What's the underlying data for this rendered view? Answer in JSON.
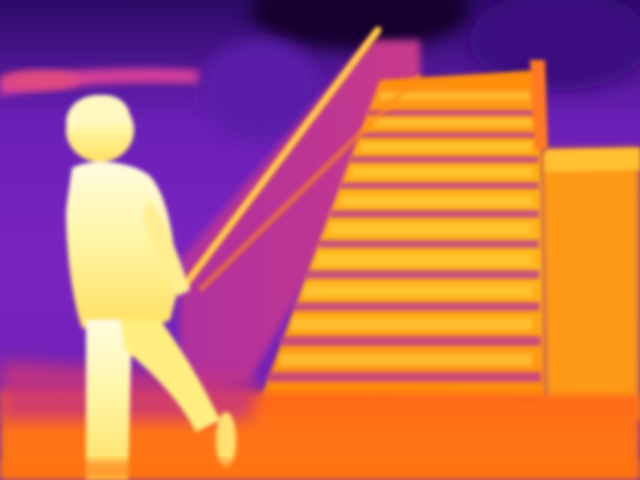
{
  "image": {
    "palette": {
      "coldest": "#1a0036",
      "cold": "#5a16a8",
      "cool": "#8a2ac8",
      "mid": "#c83a9a",
      "warm": "#ff6a1a",
      "hot": "#ffb000",
      "hotter": "#ffe040",
      "hottest": "#fffce0"
    }
  }
}
